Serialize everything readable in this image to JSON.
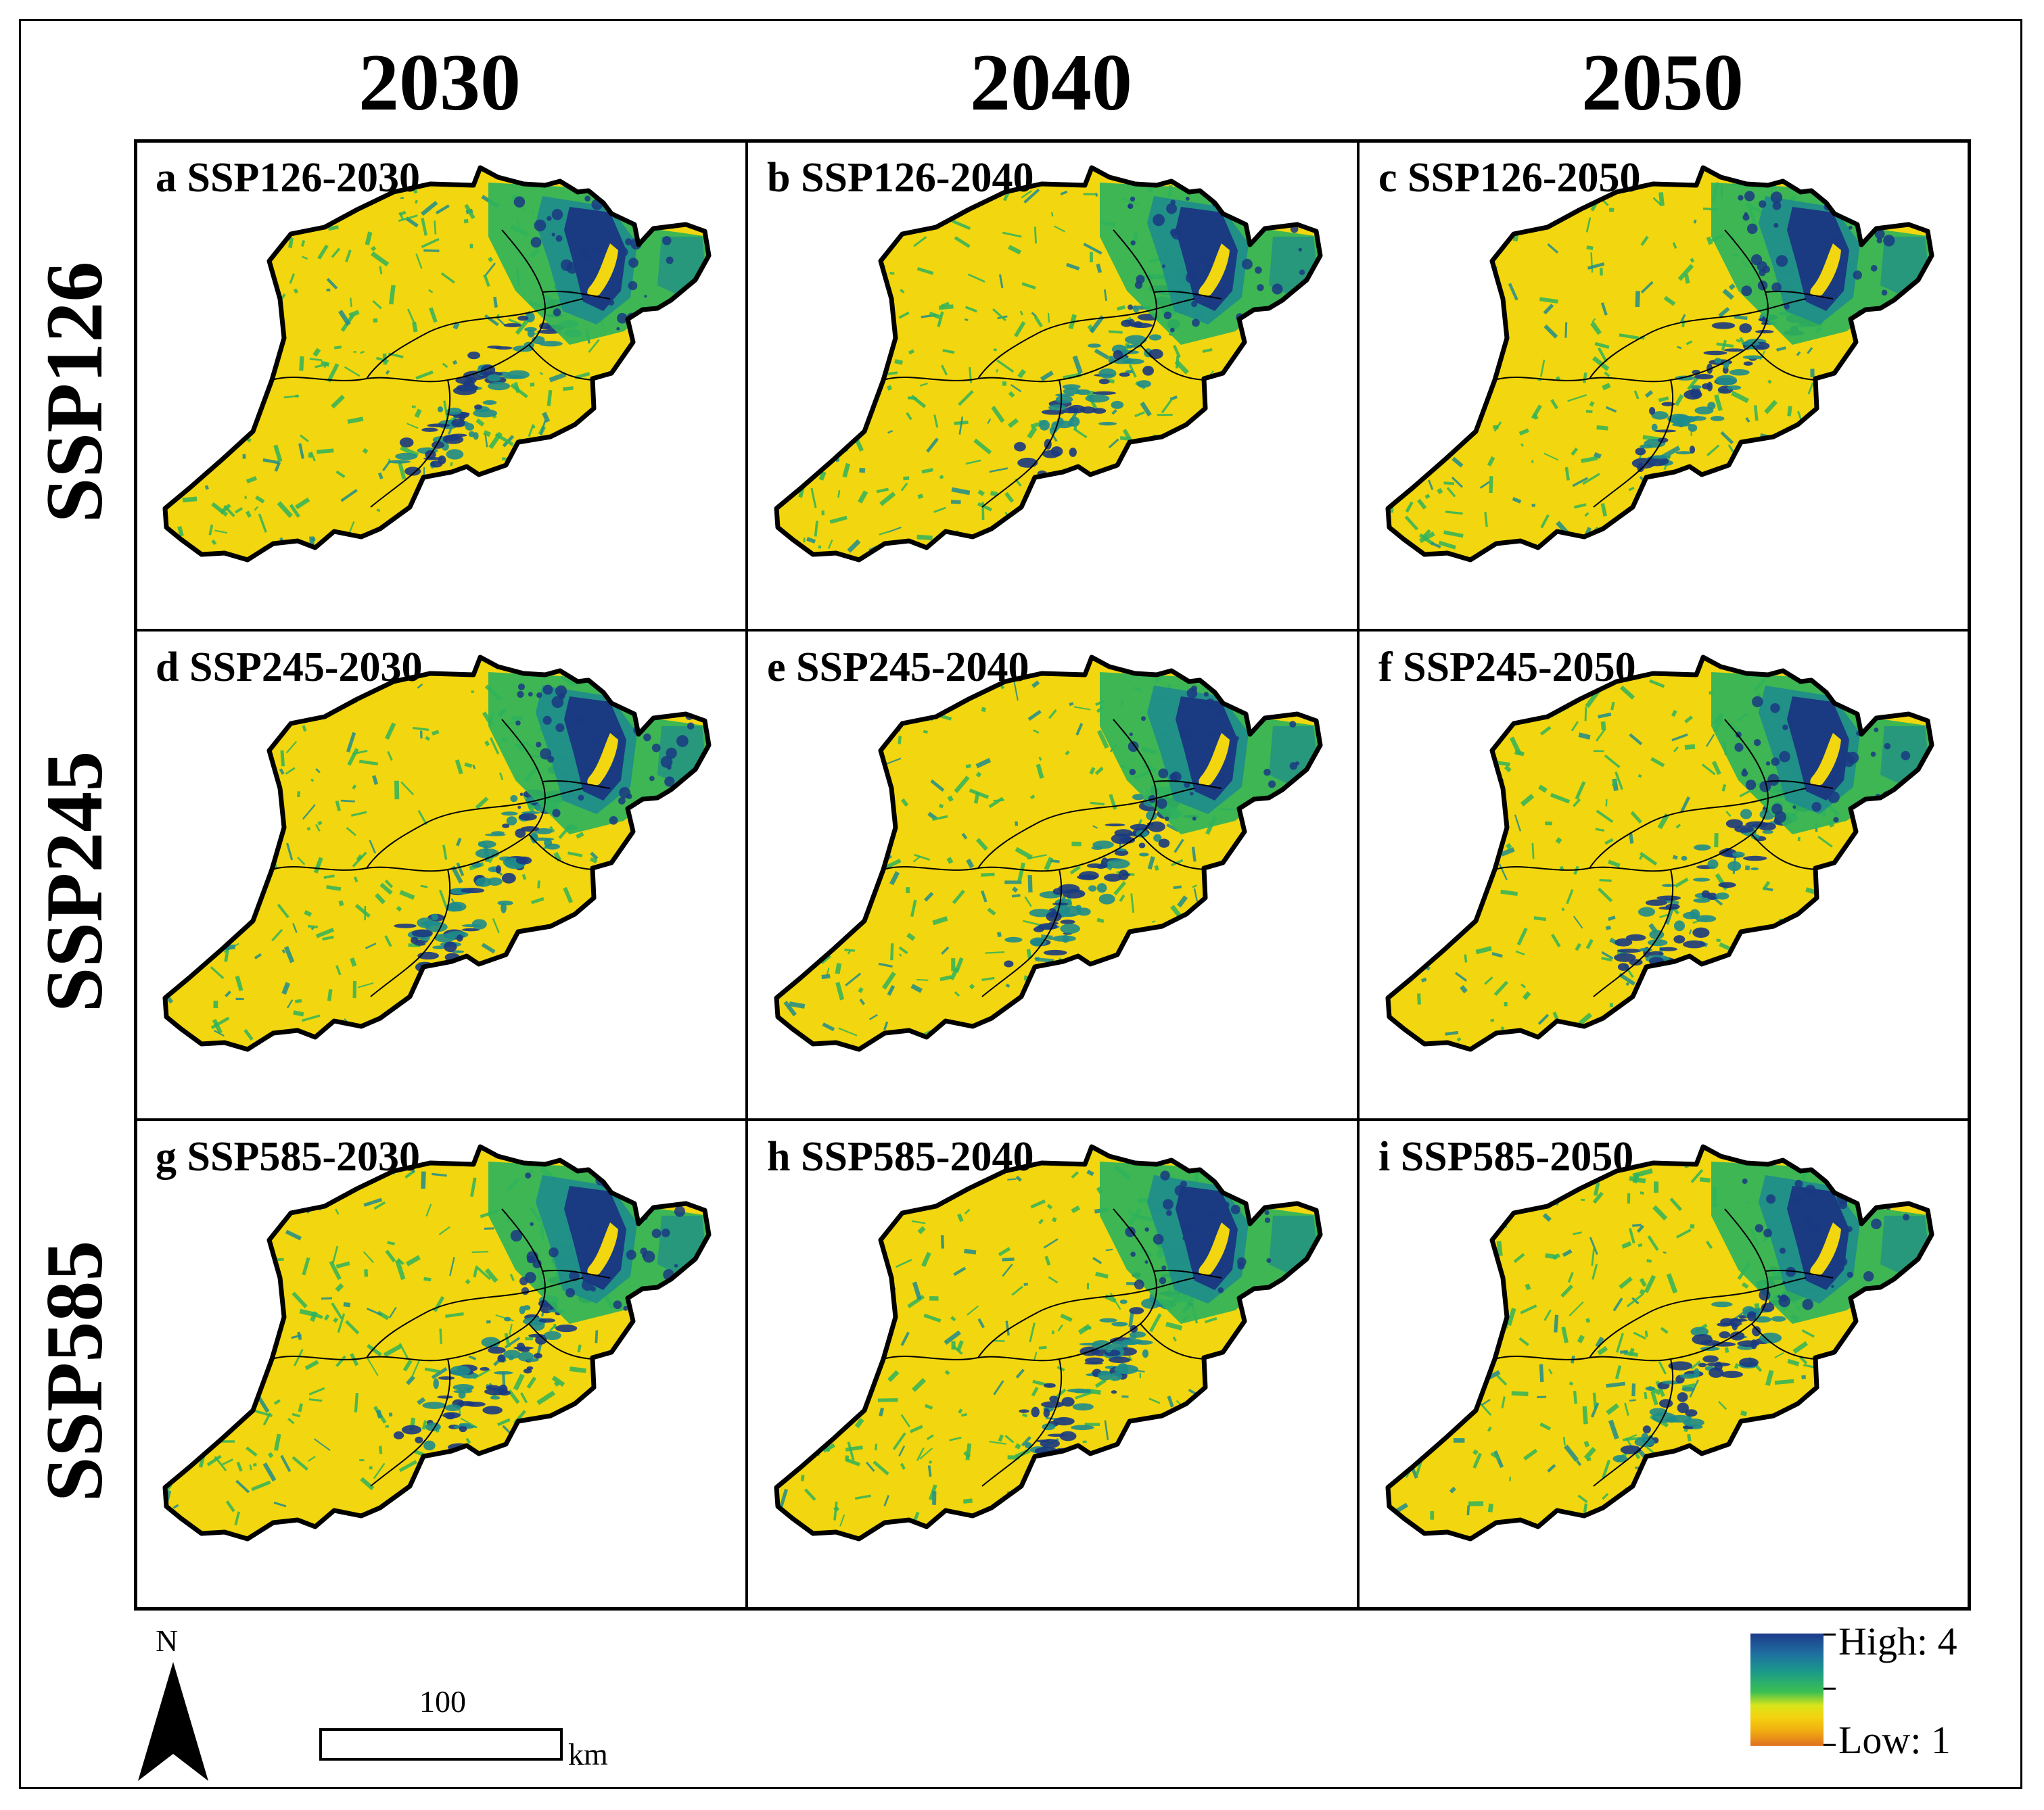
{
  "columns": [
    "2030",
    "2040",
    "2050"
  ],
  "rows": [
    "SSP126",
    "SSP245",
    "SSP585"
  ],
  "panels": [
    {
      "label": "a SSP126-2030"
    },
    {
      "label": "b SSP126-2040"
    },
    {
      "label": "c SSP126-2050"
    },
    {
      "label": "d SSP245-2030"
    },
    {
      "label": "e SSP245-2040"
    },
    {
      "label": "f SSP245-2050"
    },
    {
      "label": "g SSP585-2030"
    },
    {
      "label": "h SSP585-2040"
    },
    {
      "label": "i SSP585-2050"
    }
  ],
  "north_arrow": {
    "letter": "N"
  },
  "scale_bar": {
    "value": "100",
    "unit": "km"
  },
  "legend": {
    "high": "High: 4",
    "low": "Low: 1",
    "colors": [
      "#1d3b8a",
      "#1b9a8a",
      "#3bbf52",
      "#f3d410",
      "#e07020"
    ]
  },
  "map_colors": {
    "base": "#f2d60f",
    "green": "#2fb35a",
    "teal": "#1e8c8c",
    "dark_blue": "#1a3a82",
    "outline": "#000000"
  }
}
